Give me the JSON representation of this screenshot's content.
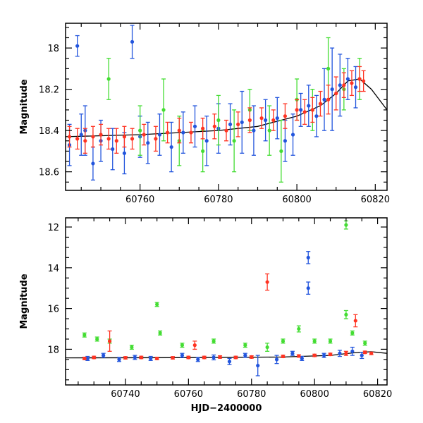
{
  "chart_data": [
    {
      "type": "scatter",
      "panel": "top",
      "title": "",
      "xlabel": "",
      "ylabel": "Magnitude",
      "xlim": [
        60741,
        60823
      ],
      "ylim": [
        18.69,
        17.88
      ],
      "y_inverted": true,
      "xticks": [
        60760,
        60780,
        60800,
        60820
      ],
      "yticks": [
        18,
        18.2,
        18.4,
        18.6
      ],
      "ytick_labels": [
        "18",
        "18.2",
        "18.4",
        "18.6"
      ],
      "grid": false,
      "series": [
        {
          "color": "#2255dd",
          "x": [
            60742,
            60744,
            60745,
            60746,
            60748,
            60750,
            60753,
            60756,
            60758,
            60760,
            60762,
            60765,
            60768,
            60771,
            60774,
            60777,
            60780,
            60783,
            60786,
            60789,
            60792,
            60795,
            60797,
            60799,
            60801,
            60803,
            60805,
            60807,
            60809,
            60811,
            60813,
            60815
          ],
          "y": [
            18.47,
            17.99,
            18.42,
            18.4,
            18.56,
            18.45,
            18.49,
            18.51,
            17.97,
            18.43,
            18.46,
            18.42,
            18.48,
            18.41,
            18.38,
            18.45,
            18.39,
            18.37,
            18.36,
            18.4,
            18.35,
            18.34,
            18.45,
            18.42,
            18.3,
            18.28,
            18.33,
            18.25,
            18.2,
            18.18,
            18.15,
            18.19
          ],
          "yerr": [
            0.1,
            0.05,
            0.1,
            0.12,
            0.08,
            0.1,
            0.1,
            0.1,
            0.08,
            0.1,
            0.1,
            0.1,
            0.12,
            0.1,
            0.1,
            0.12,
            0.12,
            0.1,
            0.15,
            0.12,
            0.1,
            0.1,
            0.1,
            0.1,
            0.08,
            0.1,
            0.1,
            0.15,
            0.2,
            0.15,
            0.1,
            0.1
          ]
        },
        {
          "color": "#44dd33",
          "x": [
            60752,
            60760,
            60766,
            60770,
            60776,
            60780,
            60784,
            60788,
            60793,
            60796,
            60800,
            60804,
            60808,
            60812,
            60816
          ],
          "y": [
            18.15,
            18.4,
            18.3,
            18.45,
            18.5,
            18.35,
            18.45,
            18.3,
            18.4,
            18.5,
            18.25,
            18.3,
            18.1,
            18.2,
            18.15
          ],
          "yerr": [
            0.1,
            0.12,
            0.15,
            0.12,
            0.1,
            0.12,
            0.15,
            0.1,
            0.12,
            0.15,
            0.1,
            0.1,
            0.15,
            0.1,
            0.1
          ]
        },
        {
          "color": "#ff3322",
          "x": [
            60742,
            60744,
            60746,
            60748,
            60750,
            60752,
            60754,
            60756,
            60758,
            60761,
            60764,
            60767,
            60770,
            60773,
            60776,
            60779,
            60782,
            60785,
            60788,
            60791,
            60794,
            60797,
            60800,
            60802,
            60804,
            60806,
            60808,
            60810,
            60812,
            60814,
            60816,
            60817
          ],
          "y": [
            18.43,
            18.44,
            18.45,
            18.43,
            18.42,
            18.44,
            18.45,
            18.43,
            18.44,
            18.42,
            18.44,
            18.41,
            18.4,
            18.41,
            18.39,
            18.38,
            18.4,
            18.37,
            18.35,
            18.34,
            18.35,
            18.33,
            18.3,
            18.31,
            18.3,
            18.27,
            18.25,
            18.22,
            18.18,
            18.17,
            18.15,
            18.16
          ],
          "yerr": [
            0.05,
            0.05,
            0.06,
            0.05,
            0.05,
            0.05,
            0.06,
            0.05,
            0.05,
            0.05,
            0.06,
            0.05,
            0.06,
            0.05,
            0.05,
            0.06,
            0.05,
            0.06,
            0.06,
            0.05,
            0.05,
            0.06,
            0.05,
            0.06,
            0.06,
            0.06,
            0.07,
            0.08,
            0.06,
            0.06,
            0.06,
            0.05
          ]
        }
      ],
      "model_curve": {
        "color": "#000000",
        "x": [
          60741,
          60760,
          60770,
          60780,
          60790,
          60800,
          60806,
          60810,
          60813,
          60816,
          60819,
          60823
        ],
        "y": [
          18.43,
          18.42,
          18.41,
          18.4,
          18.38,
          18.33,
          18.28,
          18.22,
          18.16,
          18.15,
          18.2,
          18.3
        ]
      }
    },
    {
      "type": "scatter",
      "panel": "bottom",
      "title": "",
      "xlabel": "HJD−2400000",
      "ylabel": "Magnitude",
      "xlim": [
        60721,
        60823
      ],
      "ylim": [
        19.75,
        11.55
      ],
      "y_inverted": true,
      "xticks": [
        60740,
        60760,
        60780,
        60800,
        60820
      ],
      "yticks": [
        12,
        14,
        16,
        18
      ],
      "ytick_labels": [
        "12",
        "14",
        "16",
        "18"
      ],
      "grid": false,
      "series": [
        {
          "color": "#2255dd",
          "x": [
            60728,
            60733,
            60738,
            60743,
            60748,
            60758,
            60763,
            60768,
            60773,
            60778,
            60782,
            60788,
            60793,
            60796,
            60798,
            60798,
            60803,
            60808,
            60812,
            60815
          ],
          "y": [
            18.45,
            18.3,
            18.5,
            18.4,
            18.45,
            18.3,
            18.5,
            18.4,
            18.6,
            18.3,
            18.8,
            18.5,
            18.2,
            18.45,
            13.5,
            15.0,
            18.3,
            18.2,
            18.1,
            18.3
          ],
          "yerr": [
            0.1,
            0.1,
            0.1,
            0.1,
            0.1,
            0.1,
            0.1,
            0.12,
            0.15,
            0.1,
            0.5,
            0.2,
            0.1,
            0.1,
            0.3,
            0.3,
            0.1,
            0.15,
            0.2,
            0.15
          ]
        },
        {
          "color": "#44dd33",
          "x": [
            60727,
            60731,
            60735,
            60742,
            60750,
            60751,
            60758,
            60768,
            60778,
            60785,
            60790,
            60795,
            60800,
            60805,
            60810,
            60810,
            60812,
            60816
          ],
          "y": [
            17.3,
            17.5,
            17.6,
            17.9,
            15.8,
            17.2,
            17.8,
            17.6,
            17.8,
            17.9,
            17.6,
            17.0,
            17.6,
            17.6,
            16.3,
            11.9,
            17.2,
            17.7
          ],
          "yerr": [
            0.1,
            0.1,
            0.1,
            0.1,
            0.1,
            0.1,
            0.1,
            0.1,
            0.1,
            0.2,
            0.1,
            0.15,
            0.1,
            0.1,
            0.2,
            0.2,
            0.1,
            0.1
          ]
        },
        {
          "color": "#ff3322",
          "x": [
            60727,
            60730,
            60735,
            60740,
            60745,
            60750,
            60755,
            60760,
            60762,
            60765,
            60770,
            60775,
            60780,
            60785,
            60790,
            60795,
            60800,
            60805,
            60810,
            60813,
            60816,
            60818
          ],
          "y": [
            18.45,
            18.4,
            17.6,
            18.42,
            18.4,
            18.45,
            18.42,
            18.4,
            17.8,
            18.4,
            18.38,
            18.4,
            18.38,
            14.7,
            18.35,
            18.33,
            18.3,
            18.25,
            18.2,
            16.6,
            18.15,
            18.2
          ],
          "yerr": [
            0.06,
            0.06,
            0.5,
            0.06,
            0.06,
            0.06,
            0.06,
            0.06,
            0.2,
            0.06,
            0.06,
            0.06,
            0.06,
            0.4,
            0.06,
            0.06,
            0.06,
            0.06,
            0.1,
            0.3,
            0.06,
            0.06
          ]
        }
      ],
      "model_curve": {
        "color": "#000000",
        "x": [
          60721,
          60760,
          60790,
          60805,
          60812,
          60818,
          60823
        ],
        "y": [
          18.42,
          18.41,
          18.38,
          18.3,
          18.18,
          18.12,
          18.2
        ]
      }
    }
  ]
}
